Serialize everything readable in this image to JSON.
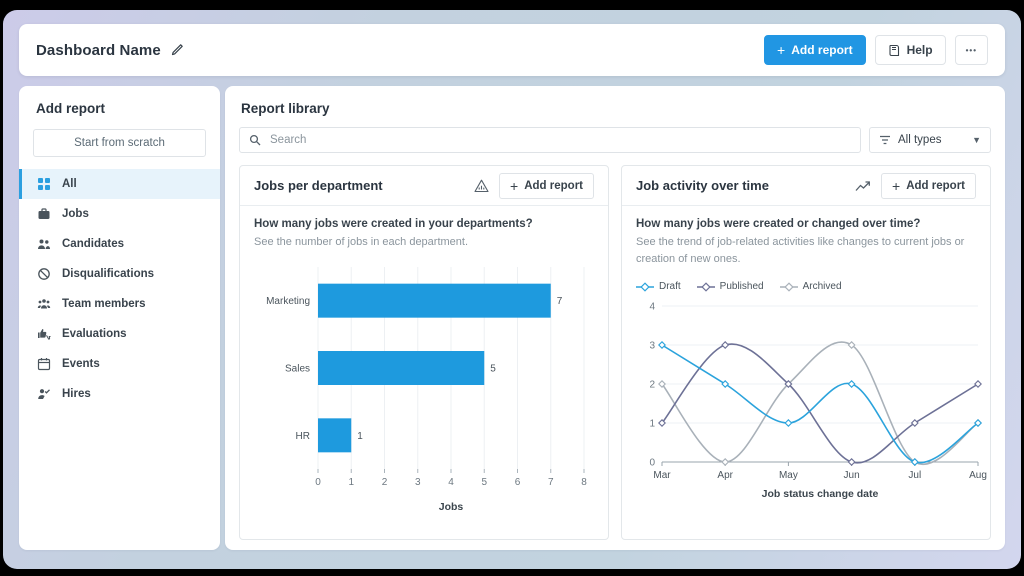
{
  "topbar": {
    "title": "Dashboard Name",
    "add_report_label": "Add report",
    "help_label": "Help"
  },
  "icons": {
    "plus": "+",
    "ellipsis": "•••",
    "caret": "▼"
  },
  "sidebar": {
    "heading": "Add report",
    "scratch_button": "Start from scratch",
    "items": [
      {
        "label": "All",
        "icon": "grid-icon",
        "active": true
      },
      {
        "label": "Jobs",
        "icon": "briefcase-icon"
      },
      {
        "label": "Candidates",
        "icon": "people-icon"
      },
      {
        "label": "Disqualifications",
        "icon": "ban-icon"
      },
      {
        "label": "Team members",
        "icon": "team-icon"
      },
      {
        "label": "Evaluations",
        "icon": "thumbs-icon"
      },
      {
        "label": "Events",
        "icon": "calendar-icon"
      },
      {
        "label": "Hires",
        "icon": "person-check-icon"
      }
    ]
  },
  "library": {
    "heading": "Report library",
    "search_placeholder": "Search",
    "filter_label": "All types"
  },
  "cards": [
    {
      "title": "Jobs per department",
      "icon": "bar-chart-icon",
      "add_label": "Add report",
      "question": "How many jobs were created in your departments?",
      "description": "See the number of jobs in each department."
    },
    {
      "title": "Job activity over time",
      "icon": "trend-icon",
      "add_label": "Add report",
      "question": "How many jobs were created or changed over time?",
      "description": "See the trend of job-related activities like changes to current jobs or creation of new ones."
    }
  ],
  "chart_data": [
    {
      "type": "bar",
      "orientation": "horizontal",
      "title": "Jobs per department",
      "categories": [
        "Marketing",
        "Sales",
        "HR"
      ],
      "values": [
        7,
        5,
        1
      ],
      "xlabel": "Jobs",
      "xlim": [
        0,
        8
      ],
      "xticks": [
        0,
        1,
        2,
        3,
        4,
        5,
        6,
        7,
        8
      ],
      "bar_color": "#1e9ade",
      "grid": true
    },
    {
      "type": "line",
      "title": "Job activity over time",
      "x": [
        "Mar",
        "Apr",
        "May",
        "Jun",
        "Jul",
        "Aug"
      ],
      "series": [
        {
          "name": "Draft",
          "values": [
            3,
            2,
            1,
            2,
            0,
            1
          ],
          "color": "#2ba3dc"
        },
        {
          "name": "Published",
          "values": [
            1,
            3,
            2,
            0,
            1,
            2
          ],
          "color": "#6d7196"
        },
        {
          "name": "Archived",
          "values": [
            2,
            0,
            2,
            3,
            0,
            1
          ],
          "color": "#a9b1b9"
        }
      ],
      "xlabel": "Job status change date",
      "ylim": [
        0,
        4
      ],
      "yticks": [
        0,
        1,
        2,
        3,
        4
      ],
      "legend_position": "top-left",
      "grid": true,
      "smooth": true
    }
  ]
}
